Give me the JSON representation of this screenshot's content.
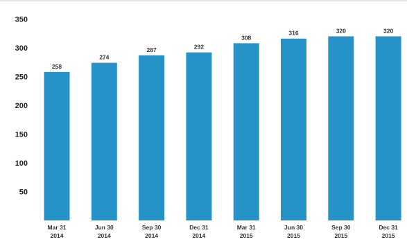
{
  "chart_data": {
    "type": "bar",
    "categories": [
      [
        "Mar 31",
        "2014"
      ],
      [
        "Jun 30",
        "2014"
      ],
      [
        "Sep 30",
        "2014"
      ],
      [
        "Dec 31",
        "2014"
      ],
      [
        "Mar 31",
        "2015"
      ],
      [
        "Jun 30",
        "2015"
      ],
      [
        "Sep 30",
        "2015"
      ],
      [
        "Dec 31",
        "2015"
      ]
    ],
    "values": [
      258,
      274,
      287,
      292,
      308,
      316,
      320,
      320
    ],
    "data_labels": [
      "258",
      "274",
      "287",
      "292",
      "308",
      "316",
      "320",
      "320"
    ],
    "yticks": [
      350,
      300,
      250,
      200,
      150,
      100,
      50
    ],
    "ylim": [
      0,
      350
    ],
    "bar_color": "#2693c8",
    "grid": false,
    "legend": "none",
    "title": "",
    "xlabel": "",
    "ylabel": ""
  }
}
